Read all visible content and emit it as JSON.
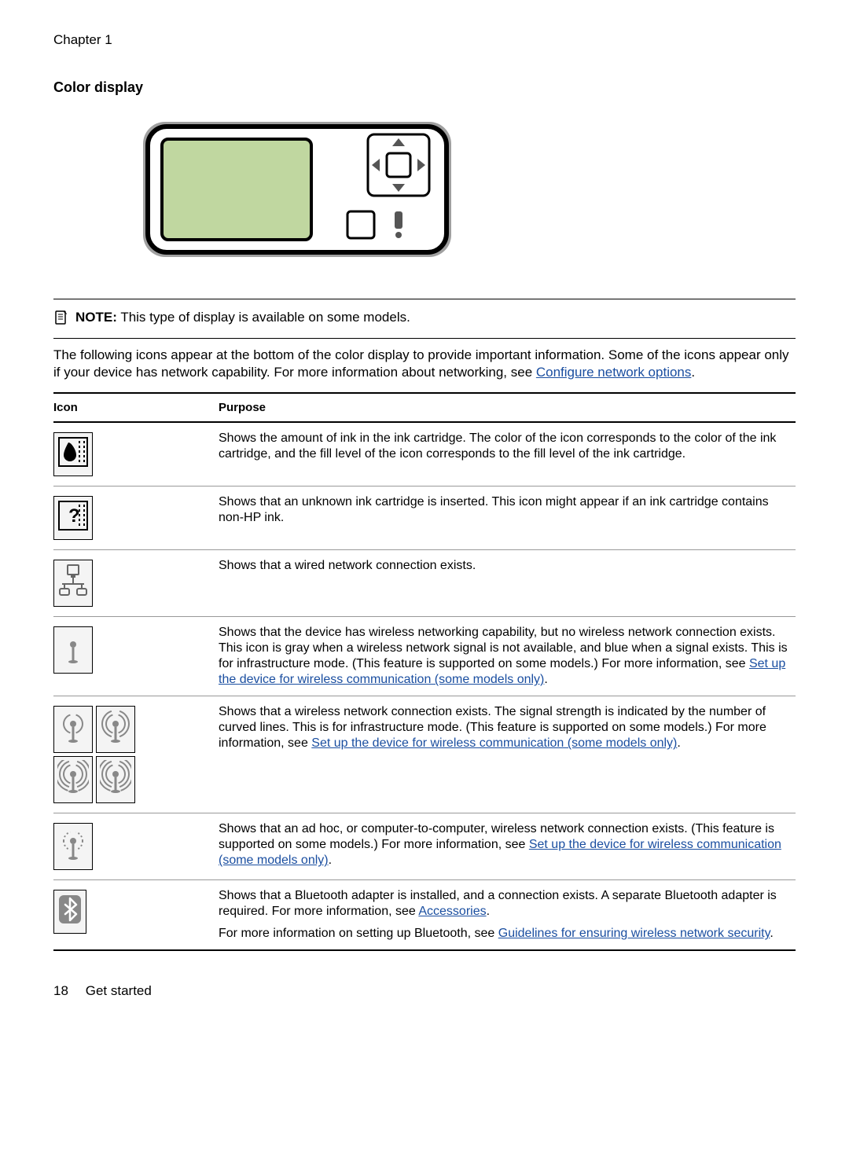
{
  "header": {
    "chapter": "Chapter 1"
  },
  "section": {
    "title": "Color display"
  },
  "figure": {
    "screen_fill": "#c0d7a0",
    "body_fill": "#ffffff",
    "body_stroke": "#000000",
    "outer_fill": "#a0a0a0",
    "border_radius": 28
  },
  "note": {
    "prefix": "NOTE:",
    "text": "This type of display is available on some models."
  },
  "intro": {
    "text_before_link": "The following icons appear at the bottom of the color display to provide important information. Some of the icons appear only if your device has network capability. For more information about networking, see ",
    "link_text": "Configure network options",
    "text_after_link": "."
  },
  "table": {
    "headers": {
      "icon": "Icon",
      "purpose": "Purpose"
    },
    "rows": [
      {
        "icon_name": "ink-level-icon",
        "segments": [
          {
            "type": "text",
            "value": "Shows the amount of ink in the ink cartridge. The color of the icon corresponds to the color of the ink cartridge, and the fill level of the icon corresponds to the fill level of the ink cartridge."
          }
        ]
      },
      {
        "icon_name": "unknown-ink-icon",
        "segments": [
          {
            "type": "text",
            "value": "Shows that an unknown ink cartridge is inserted. This icon might appear if an ink cartridge contains non-HP ink."
          }
        ]
      },
      {
        "icon_name": "wired-network-icon",
        "segments": [
          {
            "type": "text",
            "value": "Shows that a wired network connection exists."
          }
        ]
      },
      {
        "icon_name": "wireless-capable-icon",
        "segments": [
          {
            "type": "text",
            "value": "Shows that the device has wireless networking capability, but no wireless network connection exists. This icon is gray when a wireless network signal is not available, and blue when a signal exists. This is for infrastructure mode. (This feature is supported on some models.) For more information, see "
          },
          {
            "type": "link",
            "value": "Set up the device for wireless communication (some models only)"
          },
          {
            "type": "text",
            "value": "."
          }
        ]
      },
      {
        "icon_name": "wireless-signal-icon",
        "segments": [
          {
            "type": "text",
            "value": "Shows that a wireless network connection exists. The signal strength is indicated by the number of curved lines. This is for infrastructure mode. (This feature is supported on some models.) For more information, see "
          },
          {
            "type": "link",
            "value": "Set up the device for wireless communication (some models only)"
          },
          {
            "type": "text",
            "value": "."
          }
        ]
      },
      {
        "icon_name": "adhoc-wireless-icon",
        "segments": [
          {
            "type": "text",
            "value": "Shows that an ad hoc, or computer-to-computer, wireless network connection exists. (This feature is supported on some models.) For more information, see "
          },
          {
            "type": "link",
            "value": "Set up the device for wireless communication (some models only)"
          },
          {
            "type": "text",
            "value": "."
          }
        ]
      },
      {
        "icon_name": "bluetooth-icon",
        "segments": [
          {
            "type": "text",
            "value": "Shows that a Bluetooth adapter is installed, and a connection exists. A separate Bluetooth adapter is required. For more information, see "
          },
          {
            "type": "link",
            "value": "Accessories"
          },
          {
            "type": "text",
            "value": "."
          },
          {
            "type": "break"
          },
          {
            "type": "text",
            "value": "For more information on setting up Bluetooth, see "
          },
          {
            "type": "link",
            "value": "Guidelines for ensuring wireless network security"
          },
          {
            "type": "text",
            "value": "."
          }
        ]
      }
    ]
  },
  "footer": {
    "page_number": "18",
    "section_name": "Get started"
  }
}
